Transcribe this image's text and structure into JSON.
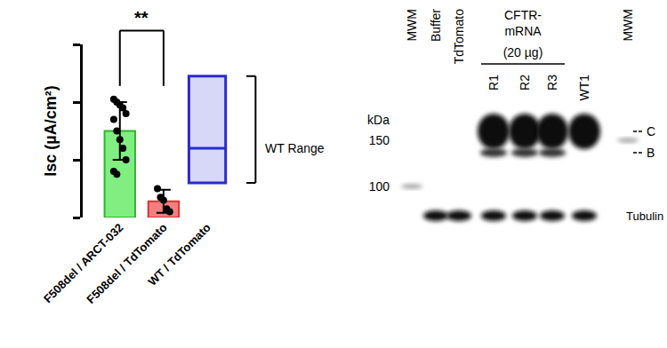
{
  "chart_data": {
    "type": "bar",
    "categories": [
      "F508del / ARCT-032",
      "F508del / TdTomato",
      "WT / TdTomato"
    ],
    "values": [
      1.5,
      0.28,
      null
    ],
    "error": [
      0.5,
      0.2,
      null
    ],
    "points": [
      [
        2.05,
        2.0,
        1.95,
        1.9,
        1.8,
        1.7,
        1.5,
        1.35,
        1.2,
        1.0,
        0.8,
        0.75
      ],
      [
        0.5,
        0.35,
        0.3,
        0.15,
        0.1
      ],
      []
    ],
    "colors": [
      "#80ee80",
      "#f08080",
      "#2a2ad0"
    ],
    "ylabel": "Isc (µA/cm²)",
    "ylim": [
      0,
      3
    ],
    "yticks": [
      0,
      1,
      2,
      3
    ],
    "tick_labels": "x",
    "grid": false,
    "range": {
      "category": "WT / TdTomato",
      "low": 0.6,
      "middle": 1.2,
      "high": 2.45,
      "label": "WT Range"
    },
    "significance": {
      "text": "**",
      "between": [
        "F508del / ARCT-032",
        "F508del / TdTomato"
      ]
    }
  },
  "blot": {
    "kda_label": "kDa",
    "kda_marks": [
      150,
      100
    ],
    "lanes": [
      {
        "label": "MWM",
        "ladder": 100
      },
      {
        "label": "Buffer",
        "bands": [
          "Tubulin"
        ]
      },
      {
        "label": "TdTomato",
        "bands": [
          "Tubulin"
        ]
      },
      {
        "label": "R1",
        "bands": [
          "C",
          "B",
          "Tubulin"
        ]
      },
      {
        "label": "R2",
        "bands": [
          "C",
          "B",
          "Tubulin"
        ]
      },
      {
        "label": "R3",
        "bands": [
          "C",
          "B",
          "Tubulin"
        ]
      },
      {
        "label": "WT1",
        "bands": [
          "C",
          "Tubulin"
        ]
      },
      {
        "label": "MWM",
        "ladder": 150
      }
    ],
    "group": {
      "lines": [
        "CFTR-",
        "mRNA",
        "(20 µg)"
      ],
      "lanes": [
        "R1",
        "R2",
        "R3"
      ]
    },
    "band_labels": [
      "C",
      "B"
    ],
    "loading_control": "Tubulin"
  }
}
